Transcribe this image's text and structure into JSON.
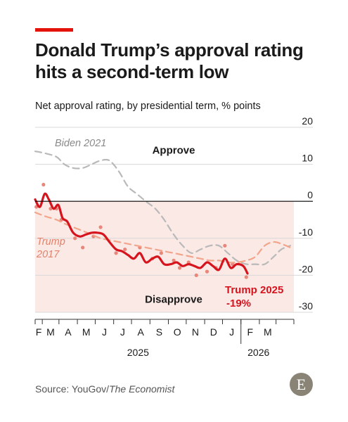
{
  "title": "Donald Trump’s approval rating hits a second-term low",
  "subtitle": "Net approval rating, by presidential term, % points",
  "source": {
    "prefix": "Source: YouGov/",
    "publication": "The Economist"
  },
  "logo": {
    "letter": "E",
    "color": "#8a8476"
  },
  "colors": {
    "accent": "#e3120b",
    "trump2025": "#d6141e",
    "trump2017": "#f2a58a",
    "biden2021": "#b9b9b9",
    "disapprove_fill": "#fbe9e6",
    "gridline": "#d8d8d8",
    "zero_line": "#000000"
  },
  "chart_data": {
    "type": "line",
    "x_axis": {
      "months": [
        "F",
        "M",
        "A",
        "M",
        "J",
        "J",
        "A",
        "S",
        "O",
        "N",
        "D",
        "J",
        "F",
        "M"
      ],
      "years": [
        "2025",
        "2026"
      ]
    },
    "y_axis": {
      "ticks": [
        20,
        10,
        0,
        -10,
        -20,
        -30
      ],
      "ylim": [
        -30,
        20
      ],
      "side": "right"
    },
    "regions": {
      "above_zero": "Approve",
      "below_zero": "Disapprove"
    },
    "series": [
      {
        "name": "Biden 2021",
        "style": "dashed",
        "x": [
          "2025-01-20",
          "2025-02-05",
          "2025-02-25",
          "2025-03-10",
          "2025-03-25",
          "2025-04-10",
          "2025-04-25",
          "2025-05-10",
          "2025-05-25",
          "2025-06-10",
          "2025-06-25",
          "2025-07-10",
          "2025-07-25",
          "2025-08-10",
          "2025-08-25",
          "2025-09-10",
          "2025-09-25",
          "2025-10-10",
          "2025-10-25",
          "2025-11-10",
          "2025-11-25",
          "2025-12-10",
          "2025-12-25",
          "2026-01-10",
          "2026-01-25",
          "2026-02-10",
          "2026-02-25",
          "2026-03-10",
          "2026-03-25"
        ],
        "values": [
          13.5,
          13,
          12,
          10,
          9,
          9,
          10,
          11,
          11,
          8,
          4,
          2,
          0,
          -2,
          -5,
          -9,
          -12,
          -14,
          -13,
          -12,
          -12,
          -14,
          -16,
          -17,
          -17,
          -17,
          -15,
          -13,
          -12
        ]
      },
      {
        "name": "Trump 2017",
        "style": "dashed",
        "x": [
          "2025-01-20",
          "2025-02-05",
          "2025-02-25",
          "2025-03-10",
          "2025-03-25",
          "2025-04-10",
          "2025-04-25",
          "2025-05-10",
          "2025-05-25",
          "2025-06-10",
          "2025-06-25",
          "2025-07-10",
          "2025-07-25",
          "2025-08-10",
          "2025-08-25",
          "2025-09-10",
          "2025-09-25",
          "2025-10-10",
          "2025-10-25",
          "2025-11-10",
          "2025-11-25",
          "2025-12-10",
          "2025-12-25",
          "2026-01-10",
          "2026-01-25",
          "2026-02-10",
          "2026-02-25",
          "2026-03-10",
          "2026-03-25"
        ],
        "values": [
          -3,
          -4,
          -5,
          -6,
          -7,
          -8,
          -9,
          -10,
          -10.5,
          -11,
          -11.5,
          -12,
          -12.5,
          -13,
          -13.5,
          -14,
          -14.5,
          -15,
          -15.5,
          -16,
          -16,
          -16.5,
          -16.5,
          -16,
          -15,
          -12,
          -11,
          -11.5,
          -12.5
        ]
      },
      {
        "name": "Trump 2025",
        "label_value": "-19%",
        "style": "solid",
        "x": [
          "2025-01-20",
          "2025-01-28",
          "2025-02-05",
          "2025-02-12",
          "2025-02-20",
          "2025-02-28",
          "2025-03-07",
          "2025-03-15",
          "2025-03-25",
          "2025-04-05",
          "2025-04-15",
          "2025-04-25",
          "2025-05-05",
          "2025-05-15",
          "2025-05-25",
          "2025-06-05",
          "2025-06-15",
          "2025-06-25",
          "2025-07-05",
          "2025-07-15",
          "2025-07-25",
          "2025-08-05",
          "2025-08-15",
          "2025-08-25",
          "2025-09-05",
          "2025-09-15",
          "2025-09-25",
          "2025-10-05",
          "2025-10-15",
          "2025-10-25",
          "2025-11-05",
          "2025-11-15",
          "2025-11-25",
          "2025-12-05",
          "2025-12-15",
          "2025-12-25",
          "2026-01-05",
          "2026-01-12"
        ],
        "values": [
          0.5,
          -1.5,
          2,
          0.5,
          -2,
          -1,
          -4.5,
          -5.5,
          -8.5,
          -9.5,
          -9,
          -8.5,
          -8.5,
          -9,
          -11,
          -13,
          -13.5,
          -14.5,
          -15.5,
          -14,
          -16.5,
          -15.5,
          -15,
          -17,
          -17,
          -16.5,
          -17.5,
          -17,
          -17.5,
          -18,
          -16.5,
          -17.5,
          -18.5,
          -15.5,
          -18,
          -17,
          -17.5,
          -19.5
        ]
      }
    ],
    "scatter_points": {
      "series": "Trump 2025",
      "x": [
        "2025-01-22",
        "2025-02-03",
        "2025-02-15",
        "2025-02-25",
        "2025-03-05",
        "2025-03-28",
        "2025-04-10",
        "2025-04-28",
        "2025-05-10",
        "2025-06-05",
        "2025-06-20",
        "2025-07-15",
        "2025-08-05",
        "2025-08-20",
        "2025-09-10",
        "2025-09-20",
        "2025-10-05",
        "2025-10-18",
        "2025-11-05",
        "2025-11-20",
        "2025-12-05",
        "2025-12-18",
        "2026-01-10"
      ],
      "values": [
        -1.5,
        4.5,
        -2,
        -2,
        -5,
        -10,
        -12.5,
        -9.5,
        -7,
        -14,
        -13,
        -12.5,
        -15.5,
        -14,
        -16,
        -18,
        -16.5,
        -20,
        -19,
        -18,
        -12,
        -17,
        -20.5
      ]
    },
    "annotations": {
      "biden_label": "Biden 2021",
      "trump2017_label_line1": "Trump",
      "trump2017_label_line2": "2017",
      "trump2025_label": "Trump 2025"
    }
  }
}
